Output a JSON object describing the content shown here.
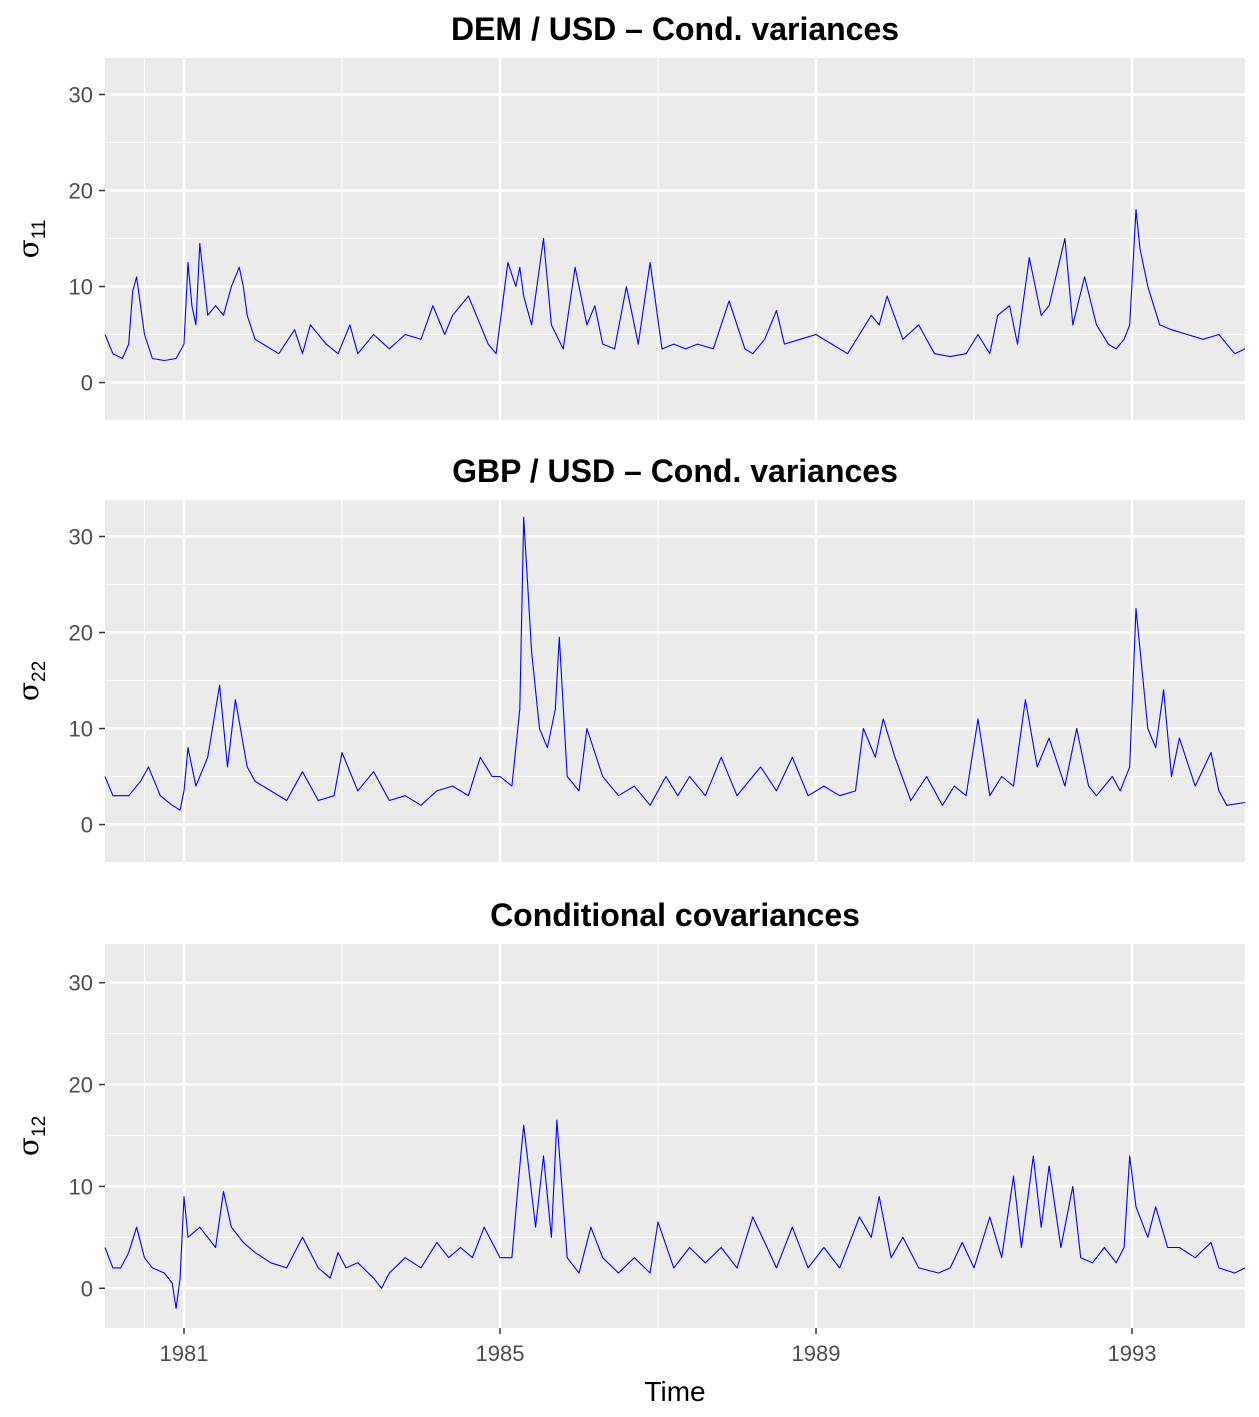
{
  "chart_data": {
    "type": "line",
    "xlabel": "Time",
    "x_ticks": [
      1981,
      1985,
      1989,
      1993
    ],
    "xlim": [
      1980.0,
      1994.43
    ],
    "ylim": [
      -3.9,
      33.8
    ],
    "y_ticks": [
      0,
      10,
      20,
      30
    ],
    "grid": true,
    "line_color": "#0000ff",
    "panel_background": "#ebebeb",
    "panels": [
      {
        "title": "DEM / USD – Cond. variances",
        "ylabel_symbol": "σ",
        "ylabel_subscript": "11",
        "series": [
          {
            "x": [
              1980.0,
              1980.1,
              1980.22,
              1980.3,
              1980.35,
              1980.4,
              1980.5,
              1980.6,
              1980.75,
              1980.9,
              1981.0,
              1981.05,
              1981.1,
              1981.15,
              1981.2,
              1981.3,
              1981.4,
              1981.5,
              1981.6,
              1981.7,
              1981.75,
              1981.8,
              1981.9,
              1982.0,
              1982.2,
              1982.4,
              1982.5,
              1982.6,
              1982.8,
              1982.95,
              1983.1,
              1983.2,
              1983.4,
              1983.6,
              1983.8,
              1984.0,
              1984.15,
              1984.3,
              1984.4,
              1984.6,
              1984.75,
              1984.85,
              1984.95,
              1985.1,
              1985.2,
              1985.25,
              1985.3,
              1985.4,
              1985.55,
              1985.65,
              1985.8,
              1985.95,
              1986.1,
              1986.2,
              1986.3,
              1986.45,
              1986.6,
              1986.75,
              1986.9,
              1987.05,
              1987.2,
              1987.35,
              1987.5,
              1987.7,
              1987.9,
              1988.0,
              1988.1,
              1988.2,
              1988.35,
              1988.5,
              1988.6,
              1988.8,
              1989.0,
              1989.2,
              1989.4,
              1989.55,
              1989.7,
              1989.8,
              1989.9,
              1990.1,
              1990.3,
              1990.5,
              1990.7,
              1990.9,
              1991.05,
              1991.2,
              1991.3,
              1991.45,
              1991.55,
              1991.7,
              1991.85,
              1991.95,
              1992.15,
              1992.25,
              1992.4,
              1992.55,
              1992.7,
              1992.8,
              1992.9,
              1992.97,
              1993.05,
              1993.1,
              1993.2,
              1993.35,
              1993.5,
              1993.7,
              1993.9,
              1994.1,
              1994.3,
              1994.43
            ],
            "y": [
              5,
              3,
              2.5,
              4,
              9.5,
              11,
              5,
              2.5,
              2.3,
              2.5,
              4,
              12.5,
              8,
              6,
              14.5,
              7,
              8,
              7,
              10,
              12,
              10,
              7,
              4.5,
              4,
              3,
              5.5,
              3,
              6,
              4,
              3,
              6,
              3,
              5,
              3.5,
              5,
              4.5,
              8,
              5,
              7,
              9,
              6,
              4,
              3,
              12.5,
              10,
              12,
              9,
              6,
              15,
              6,
              3.5,
              12,
              6,
              8,
              4,
              3.5,
              10,
              4,
              12.5,
              3.5,
              4,
              3.5,
              4,
              3.5,
              8.5,
              6,
              3.5,
              3,
              4.5,
              7.5,
              4,
              4.5,
              5,
              4,
              3,
              5,
              7,
              6,
              9,
              4.5,
              6,
              3,
              2.7,
              3,
              5,
              3,
              7,
              8,
              4,
              13,
              7,
              8,
              15,
              6,
              11,
              6,
              4,
              3.5,
              4.5,
              6,
              18,
              14,
              10,
              6,
              5.5,
              5,
              4.5,
              5,
              3,
              3.5
            ]
          }
        ]
      },
      {
        "title": "GBP / USD – Cond. variances",
        "ylabel_symbol": "σ",
        "ylabel_subscript": "22",
        "series": [
          {
            "x": [
              1980.0,
              1980.1,
              1980.3,
              1980.45,
              1980.55,
              1980.7,
              1980.85,
              1980.95,
              1981.0,
              1981.05,
              1981.15,
              1981.3,
              1981.45,
              1981.55,
              1981.65,
              1981.8,
              1981.9,
              1982.1,
              1982.3,
              1982.5,
              1982.7,
              1982.9,
              1983.0,
              1983.2,
              1983.4,
              1983.6,
              1983.8,
              1984.0,
              1984.2,
              1984.4,
              1984.6,
              1984.75,
              1984.9,
              1985.0,
              1985.15,
              1985.25,
              1985.3,
              1985.4,
              1985.5,
              1985.6,
              1985.7,
              1985.75,
              1985.85,
              1986.0,
              1986.1,
              1986.3,
              1986.5,
              1986.7,
              1986.9,
              1987.1,
              1987.25,
              1987.4,
              1987.6,
              1987.8,
              1988.0,
              1988.1,
              1988.3,
              1988.5,
              1988.7,
              1988.9,
              1989.1,
              1989.3,
              1989.5,
              1989.6,
              1989.75,
              1989.85,
              1990.0,
              1990.2,
              1990.4,
              1990.6,
              1990.75,
              1990.9,
              1991.05,
              1991.2,
              1991.35,
              1991.5,
              1991.65,
              1991.8,
              1991.95,
              1992.15,
              1992.3,
              1992.45,
              1992.55,
              1992.75,
              1992.85,
              1992.97,
              1993.05,
              1993.2,
              1993.3,
              1993.4,
              1993.5,
              1993.6,
              1993.8,
              1994.0,
              1994.1,
              1994.2,
              1994.43
            ],
            "y": [
              5,
              3,
              3,
              4.5,
              6,
              3,
              2,
              1.5,
              3.5,
              8,
              4,
              7,
              14.5,
              6,
              13,
              6,
              4.5,
              3.5,
              2.5,
              5.5,
              2.5,
              3,
              7.5,
              3.5,
              5.5,
              2.5,
              3,
              2,
              3.5,
              4,
              3,
              7,
              5,
              5,
              4,
              12,
              32,
              18,
              10,
              8,
              12,
              19.5,
              5,
              3.5,
              10,
              5,
              3,
              4,
              2,
              5,
              3,
              5,
              3,
              7,
              3,
              4,
              6,
              3.5,
              7,
              3,
              4,
              3,
              3.5,
              10,
              7,
              11,
              7,
              2.5,
              5,
              2,
              4,
              3,
              11,
              3,
              5,
              4,
              13,
              6,
              9,
              4,
              10,
              4,
              3,
              5,
              3.5,
              6,
              22.5,
              10,
              8,
              14,
              5,
              9,
              4,
              7.5,
              3.5,
              2,
              2.3
            ]
          }
        ]
      },
      {
        "title": "Conditional covariances",
        "ylabel_symbol": "σ",
        "ylabel_subscript": "12",
        "series": [
          {
            "x": [
              1980.0,
              1980.1,
              1980.2,
              1980.3,
              1980.4,
              1980.5,
              1980.6,
              1980.75,
              1980.85,
              1980.9,
              1980.95,
              1981.0,
              1981.05,
              1981.2,
              1981.4,
              1981.5,
              1981.6,
              1981.75,
              1981.9,
              1982.1,
              1982.3,
              1982.5,
              1982.7,
              1982.85,
              1982.95,
              1983.05,
              1983.2,
              1983.4,
              1983.5,
              1983.6,
              1983.8,
              1984.0,
              1984.2,
              1984.35,
              1984.5,
              1984.65,
              1984.8,
              1984.9,
              1985.0,
              1985.15,
              1985.25,
              1985.3,
              1985.45,
              1985.55,
              1985.65,
              1985.72,
              1985.85,
              1986.0,
              1986.15,
              1986.3,
              1986.5,
              1986.7,
              1986.9,
              1987.0,
              1987.2,
              1987.4,
              1987.6,
              1987.8,
              1988.0,
              1988.2,
              1988.35,
              1988.5,
              1988.7,
              1988.9,
              1989.1,
              1989.3,
              1989.55,
              1989.7,
              1989.8,
              1989.95,
              1990.1,
              1990.3,
              1990.55,
              1990.7,
              1990.85,
              1991.0,
              1991.2,
              1991.35,
              1991.5,
              1991.6,
              1991.75,
              1991.85,
              1991.95,
              1992.1,
              1992.25,
              1992.35,
              1992.5,
              1992.65,
              1992.8,
              1992.9,
              1992.97,
              1993.05,
              1993.2,
              1993.3,
              1993.45,
              1993.6,
              1993.8,
              1994.0,
              1994.1,
              1994.3,
              1994.43
            ],
            "y": [
              4,
              2,
              2,
              3.5,
              6,
              3,
              2,
              1.5,
              0.5,
              -2,
              1,
              9,
              5,
              6,
              4,
              9.5,
              6,
              4.5,
              3.5,
              2.5,
              2,
              5,
              2,
              1,
              3.5,
              2,
              2.5,
              1,
              0,
              1.5,
              3,
              2,
              4.5,
              3,
              4,
              3,
              6,
              4.5,
              3,
              3,
              12,
              16,
              6,
              13,
              5,
              16.5,
              3,
              1.5,
              6,
              3,
              1.5,
              3,
              1.5,
              6.5,
              2,
              4,
              2.5,
              4,
              2,
              7,
              4.5,
              2,
              6,
              2,
              4,
              2,
              7,
              5,
              9,
              3,
              5,
              2,
              1.5,
              2,
              4.5,
              2,
              7,
              3,
              11,
              4,
              13,
              6,
              12,
              4,
              10,
              3,
              2.5,
              4,
              2.5,
              4,
              13,
              8,
              5,
              8,
              4,
              4,
              3,
              4.5,
              2,
              1.5,
              2
            ]
          }
        ]
      }
    ]
  }
}
